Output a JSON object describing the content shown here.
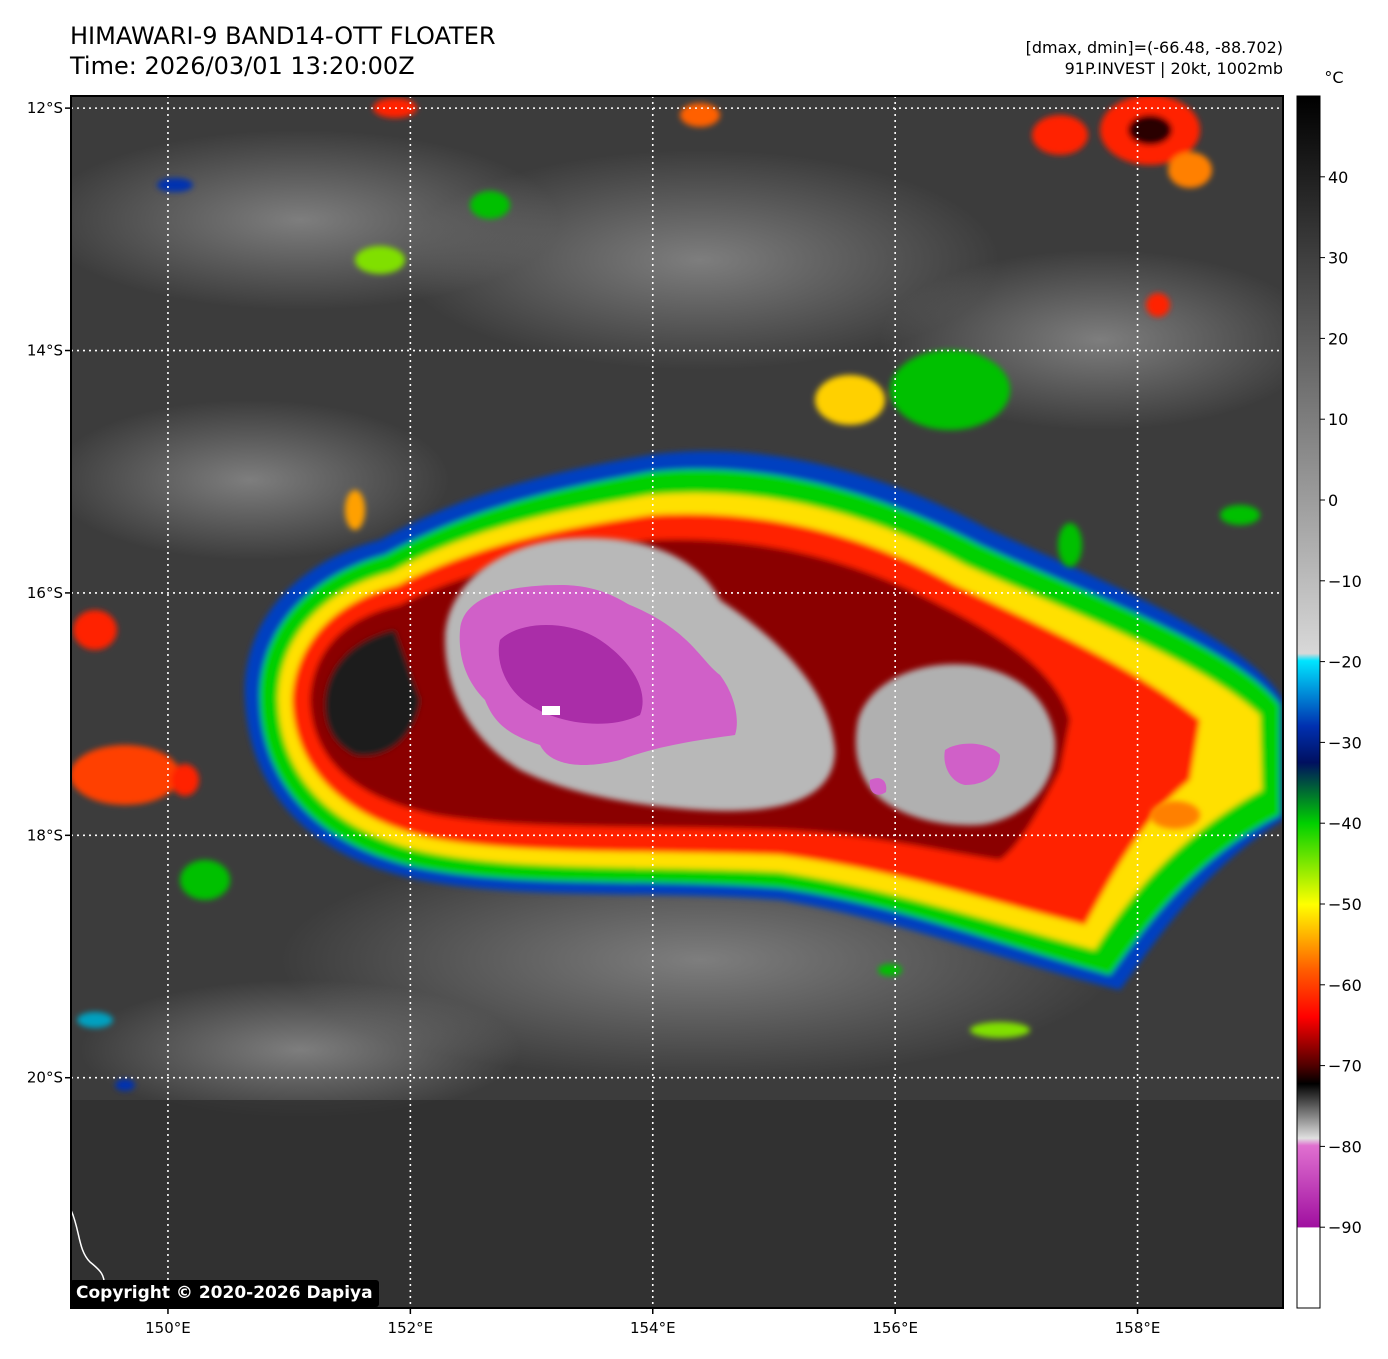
{
  "title": {
    "line1": "HIMAWARI-9 BAND14-OTT FLOATER",
    "line2": "Time: 2026/03/01 13:20:00Z"
  },
  "info": {
    "line1": "[dmax, dmin]=(-66.48, -88.702)",
    "line2": "91P.INVEST | 20kt, 1002mb"
  },
  "map": {
    "lat_labels": [
      "12°S",
      "14°S",
      "16°S",
      "18°S",
      "20°S"
    ],
    "lon_labels": [
      "150°E",
      "152°E",
      "154°E",
      "156°E",
      "158°E"
    ],
    "lat_values": [
      -12,
      -14,
      -16,
      -18,
      -20
    ],
    "lon_values": [
      150,
      152,
      154,
      156,
      158
    ],
    "extent": {
      "lon_min": 149.2,
      "lon_max": 159.2,
      "lat_max": -11.9,
      "lat_min": -21.9
    },
    "grid": true,
    "system": {
      "name": "91P.INVEST",
      "center_lon": 153.9,
      "center_lat": -16.9
    }
  },
  "colorbar": {
    "unit": "°C",
    "labels": [
      "40",
      "30",
      "20",
      "10",
      "0",
      "−10",
      "−20",
      "−30",
      "−40",
      "−50",
      "−60",
      "−70",
      "−80",
      "−90"
    ],
    "values": [
      40,
      30,
      20,
      10,
      0,
      -10,
      -20,
      -30,
      -40,
      -50,
      -60,
      -70,
      -80,
      -90
    ],
    "range": [
      -100,
      50
    ],
    "colors": {
      "warm": "#000000",
      "mid": "#bfbfbf",
      "cyan": "#00e5ff",
      "blue": "#001a8c",
      "green": "#00e000",
      "yellow": "#ffff00",
      "red": "#ff0000",
      "dark_red": "#6a0000",
      "magenta": "#d050c8",
      "white": "#ffffff"
    }
  },
  "copyright": "Copyright © 2020-2026 Dapiya"
}
